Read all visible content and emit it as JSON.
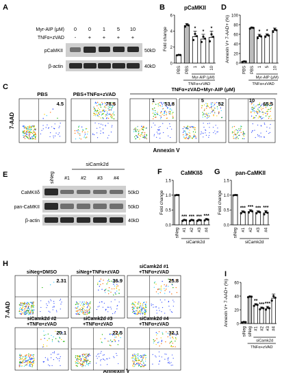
{
  "panels": {
    "A": {
      "letter": "A",
      "treatment_rows": [
        {
          "label": "Myr-AIP (μM)",
          "values": [
            "0",
            "0",
            "1",
            "5",
            "10"
          ]
        },
        {
          "label": "TNFα+zVAD",
          "values": [
            "-",
            "+",
            "+",
            "+",
            "+"
          ]
        }
      ],
      "blots": [
        {
          "label": "pCaMKII",
          "size": "50kD"
        },
        {
          "label": "β-actin",
          "size": "40kD"
        }
      ]
    },
    "B": {
      "letter": "B",
      "chart_data": {
        "type": "bar",
        "title": "pCaMKII",
        "ylabel": "Fold change",
        "categories": [
          "PBS",
          "PBS",
          "1",
          "5",
          "10"
        ],
        "values": [
          1.0,
          4.7,
          3.3,
          3.0,
          3.2
        ],
        "errors": [
          0.05,
          0.25,
          0.7,
          0.6,
          0.8
        ],
        "sig": [
          "",
          "",
          "*",
          "*",
          "*"
        ],
        "ylim": [
          0,
          6
        ],
        "yticks": [
          "0",
          "2",
          "4",
          "6"
        ],
        "group_labels": {
          "inner": "Myr-AIP (μM)",
          "outer": "TNFα+zVAD"
        }
      }
    },
    "D": {
      "letter": "D",
      "chart_data": {
        "type": "bar",
        "ylabel": "Annexin V+ 7-AAD+ (%)",
        "categories": [
          "PBS",
          "PBS",
          "1",
          "5",
          "10"
        ],
        "values": [
          3,
          73,
          55,
          57,
          68
        ],
        "errors": [
          1,
          2,
          5,
          4,
          5
        ],
        "sig": [
          "",
          "",
          "*",
          "*",
          ""
        ],
        "ylim": [
          0,
          100
        ],
        "yticks": [
          "0",
          "20",
          "40",
          "60",
          "80",
          "100"
        ],
        "group_labels": {
          "inner": "Myr-AIP (μM)",
          "outer": "TNFα+zVAD"
        }
      }
    },
    "C": {
      "letter": "C",
      "yaxis": "7-AAD",
      "xaxis": "Annexin V",
      "group_label": "TNFα+zVAD+Myr-AIP (μM)",
      "plots": [
        {
          "label": "PBS",
          "value": "4.5"
        },
        {
          "label": "PBS+TNFα+zVAD",
          "value": "78.5"
        },
        {
          "label": "1",
          "value": "53.8"
        },
        {
          "label": "5",
          "value": "52"
        },
        {
          "label": "10",
          "value": "65.5"
        }
      ]
    },
    "E": {
      "letter": "E",
      "header": "siCamk2d",
      "lanes": [
        "siNeg",
        "#1",
        "#2",
        "#3",
        "#4"
      ],
      "blots": [
        {
          "label": "CaMKIIδ",
          "size": "50kD"
        },
        {
          "label": "pan-CaMKII",
          "size": "50kD"
        },
        {
          "label": "β-actin",
          "size": "40kD"
        }
      ]
    },
    "F": {
      "letter": "F",
      "chart_data": {
        "type": "bar",
        "title": "CaMKIIδ",
        "ylabel": "Fold change",
        "categories": [
          "siNeg",
          "#1",
          "#2",
          "#3",
          "#4"
        ],
        "values": [
          1.0,
          0.15,
          0.15,
          0.15,
          0.17
        ],
        "errors": [
          0.01,
          0.03,
          0.03,
          0.03,
          0.04
        ],
        "sig": [
          "",
          "***",
          "***",
          "***",
          "***"
        ],
        "ylim": [
          0,
          1.5
        ],
        "yticks": [
          "0.0",
          "0.5",
          "1.0",
          "1.5"
        ],
        "group_label": "siCamk2d"
      }
    },
    "G": {
      "letter": "G",
      "chart_data": {
        "type": "bar",
        "title": "pan-CaMKII",
        "ylabel": "Fold change",
        "categories": [
          "siNeg",
          "#1",
          "#2",
          "#3",
          "#4"
        ],
        "values": [
          1.0,
          0.42,
          0.45,
          0.42,
          0.4
        ],
        "errors": [
          0.01,
          0.05,
          0.06,
          0.05,
          0.08
        ],
        "sig": [
          "",
          "***",
          "***",
          "***",
          "***"
        ],
        "ylim": [
          0,
          1.5
        ],
        "yticks": [
          "0.0",
          "0.5",
          "1.0",
          "1.5"
        ],
        "group_label": "siCamk2d"
      }
    },
    "H": {
      "letter": "H",
      "yaxis": "7-AAD",
      "xaxis": "Annexin V",
      "plots": [
        {
          "label": "siNeg+DMSO",
          "value": "2.31"
        },
        {
          "label": "siNeg+TNFα+zVAD",
          "value": "36.9"
        },
        {
          "label": "siCamk2d #1\n+TNFα+zVAD",
          "value": "25.8"
        },
        {
          "label": "siCamk2d #2\n+TNFα+zVAD",
          "value": "20.1"
        },
        {
          "label": "siCamk2d #3\n+TNFα+zVAD",
          "value": "22.5"
        },
        {
          "label": "siCamk2d #4\n+TNFα+zVAD",
          "value": "32.1"
        }
      ]
    },
    "I": {
      "letter": "I",
      "chart_data": {
        "type": "bar",
        "ylabel": "Annexin V+ 7-AAD+ (%)",
        "categories": [
          "siNeg",
          "siNeg",
          "#1",
          "#2",
          "#3",
          "#4"
        ],
        "values": [
          2,
          39,
          27,
          22,
          22,
          37
        ],
        "errors": [
          0.5,
          1,
          2,
          2,
          3,
          6
        ],
        "sig": [
          "",
          "",
          "**",
          "***",
          "***",
          ""
        ],
        "ylim": [
          0,
          60
        ],
        "yticks": [
          "0",
          "20",
          "40",
          "60"
        ],
        "group_labels": {
          "inner": "siCamk2d",
          "outer": "TNFα+zVAD"
        }
      }
    }
  },
  "colors": {
    "bar_control": "#ffffff",
    "bar_tnf": "#bdbdbd",
    "bar_dark": "#3a3a3a",
    "dot": "#111111"
  }
}
